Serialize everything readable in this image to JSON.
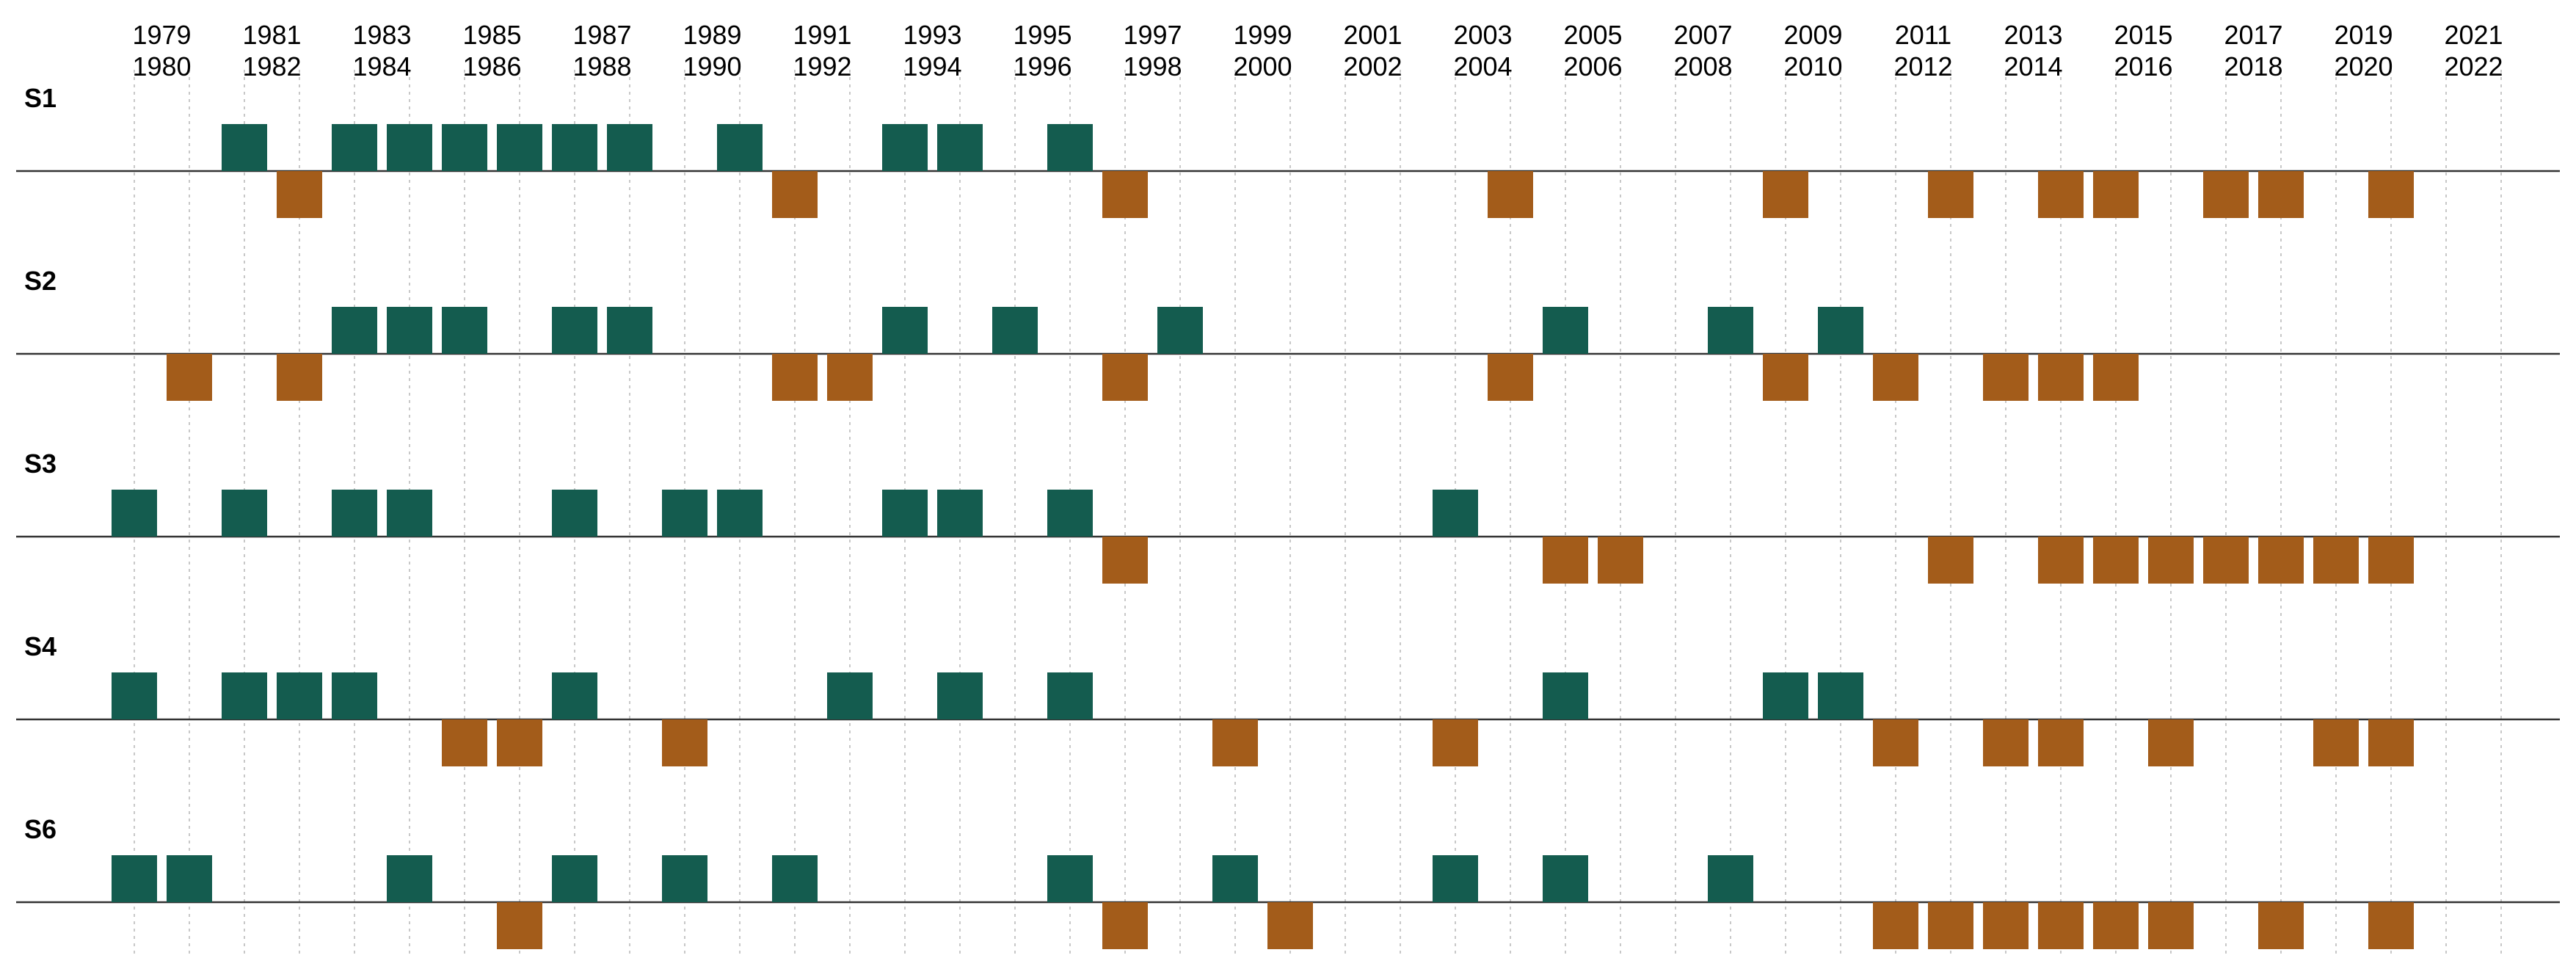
{
  "chart_data": {
    "type": "event-timeline",
    "years": [
      1979,
      1980,
      1981,
      1982,
      1983,
      1984,
      1985,
      1986,
      1987,
      1988,
      1989,
      1990,
      1991,
      1992,
      1993,
      1994,
      1995,
      1996,
      1997,
      1998,
      1999,
      2000,
      2001,
      2002,
      2003,
      2004,
      2005,
      2006,
      2007,
      2008,
      2009,
      2010,
      2011,
      2012,
      2013,
      2014,
      2015,
      2016,
      2017,
      2018,
      2019,
      2020,
      2021,
      2022
    ],
    "colors": {
      "above": "#145c4f",
      "below": "#a35c1a"
    },
    "series": [
      {
        "name": "S1",
        "above": [
          1981,
          1983,
          1984,
          1985,
          1986,
          1987,
          1988,
          1990,
          1993,
          1994,
          1996
        ],
        "below": [
          1982,
          1991,
          1997,
          2004,
          2009,
          2012,
          2014,
          2015,
          2017,
          2018,
          2020
        ]
      },
      {
        "name": "S2",
        "above": [
          1983,
          1984,
          1985,
          1987,
          1988,
          1993,
          1995,
          1998,
          2005,
          2008,
          2010
        ],
        "below": [
          1980,
          1982,
          1991,
          1992,
          1997,
          2004,
          2009,
          2011,
          2013,
          2014,
          2015
        ]
      },
      {
        "name": "S3",
        "above": [
          1979,
          1981,
          1983,
          1984,
          1987,
          1989,
          1990,
          1993,
          1994,
          1996,
          2003
        ],
        "below": [
          1997,
          2005,
          2006,
          2012,
          2014,
          2015,
          2016,
          2017,
          2018,
          2019,
          2020
        ]
      },
      {
        "name": "S4",
        "above": [
          1979,
          1981,
          1982,
          1983,
          1987,
          1992,
          1994,
          1996,
          2005,
          2009,
          2010
        ],
        "below": [
          1985,
          1986,
          1989,
          1999,
          2003,
          2011,
          2013,
          2014,
          2016,
          2019,
          2020
        ]
      },
      {
        "name": "S6",
        "above": [
          1979,
          1980,
          1984,
          1987,
          1989,
          1991,
          1996,
          1999,
          2003,
          2005,
          2008
        ],
        "below": [
          1986,
          1997,
          2000,
          2011,
          2012,
          2013,
          2014,
          2015,
          2016,
          2018,
          2020
        ]
      }
    ]
  }
}
